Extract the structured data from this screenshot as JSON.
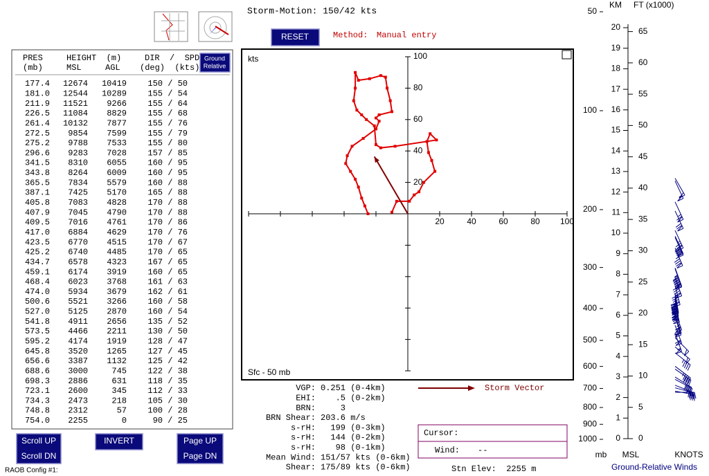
{
  "header": {
    "storm_motion": "Storm-Motion: 150/42 kts",
    "reset": "RESET",
    "method_label": "Method:",
    "method_value": "Manual entry"
  },
  "table": {
    "ground_relative": [
      "Ground",
      "Relative"
    ],
    "headers": {
      "pres": "PRES",
      "pres_unit": "(mb)",
      "height": "HEIGHT  (m)",
      "msl": "MSL",
      "agl": "AGL",
      "dir_spd": "DIR  /  SPD",
      "dir_spd_unit": "(deg)  (kts)"
    },
    "rows": [
      [
        "177.4",
        "12674",
        "10419",
        "150 / 50"
      ],
      [
        "181.0",
        "12544",
        "10289",
        "155 / 54"
      ],
      [
        "211.9",
        "11521",
        "9266",
        "155 / 64"
      ],
      [
        "226.5",
        "11084",
        "8829",
        "155 / 68"
      ],
      [
        "261.4",
        "10132",
        "7877",
        "155 / 76"
      ],
      [
        "272.5",
        "9854",
        "7599",
        "155 / 79"
      ],
      [
        "275.2",
        "9788",
        "7533",
        "155 / 80"
      ],
      [
        "296.6",
        "9283",
        "7028",
        "157 / 85"
      ],
      [
        "341.5",
        "8310",
        "6055",
        "160 / 95"
      ],
      [
        "343.8",
        "8264",
        "6009",
        "160 / 95"
      ],
      [
        "365.5",
        "7834",
        "5579",
        "160 / 88"
      ],
      [
        "387.1",
        "7425",
        "5170",
        "165 / 88"
      ],
      [
        "405.8",
        "7083",
        "4828",
        "170 / 88"
      ],
      [
        "407.9",
        "7045",
        "4790",
        "170 / 88"
      ],
      [
        "409.5",
        "7016",
        "4761",
        "170 / 86"
      ],
      [
        "417.0",
        "6884",
        "4629",
        "170 / 76"
      ],
      [
        "423.5",
        "6770",
        "4515",
        "170 / 67"
      ],
      [
        "425.2",
        "6740",
        "4485",
        "170 / 65"
      ],
      [
        "434.7",
        "6578",
        "4323",
        "167 / 65"
      ],
      [
        "459.1",
        "6174",
        "3919",
        "160 / 65"
      ],
      [
        "468.4",
        "6023",
        "3768",
        "161 / 63"
      ],
      [
        "474.0",
        "5934",
        "3679",
        "162 / 61"
      ],
      [
        "500.6",
        "5521",
        "3266",
        "160 / 58"
      ],
      [
        "527.0",
        "5125",
        "2870",
        "160 / 54"
      ],
      [
        "541.8",
        "4911",
        "2656",
        "135 / 52"
      ],
      [
        "573.5",
        "4466",
        "2211",
        "130 / 50"
      ],
      [
        "595.2",
        "4174",
        "1919",
        "128 / 47"
      ],
      [
        "645.8",
        "3520",
        "1265",
        "127 / 45"
      ],
      [
        "656.6",
        "3387",
        "1132",
        "125 / 42"
      ],
      [
        "688.6",
        "3000",
        "745",
        "122 / 38"
      ],
      [
        "698.3",
        "2886",
        "631",
        "118 / 35"
      ],
      [
        "723.1",
        "2600",
        "345",
        "112 / 33"
      ],
      [
        "734.3",
        "2473",
        "218",
        "105 / 30"
      ],
      [
        "748.8",
        "2312",
        "57",
        "100 / 28"
      ],
      [
        "754.0",
        "2255",
        "0",
        "90 / 25"
      ]
    ]
  },
  "buttons": {
    "scroll_up": "Scroll UP",
    "scroll_dn": "Scroll DN",
    "invert": "INVERT",
    "page_up": "Page UP",
    "page_dn": "Page DN"
  },
  "config": "RAOB Config #1:",
  "stats": [
    {
      "label": "VGP:",
      "value": "0.251 (0-4km)"
    },
    {
      "label": "EHI:",
      "value": "   .5 (0-2km)"
    },
    {
      "label": "BRN:",
      "value": "    3"
    },
    {
      "label": "BRN Shear:",
      "value": "203.6 m/s"
    },
    {
      "label": "s-rH:",
      "value": "  199 (0-3km)"
    },
    {
      "label": "s-rH:",
      "value": "  144 (0-2km)"
    },
    {
      "label": "s-rH:",
      "value": "   98 (0-1km)"
    },
    {
      "label": "Mean Wind:",
      "value": "151/57 kts (0-6km)"
    },
    {
      "label": "Shear:",
      "value": "175/89 kts (0-6km)"
    }
  ],
  "cursor": {
    "label": "Cursor:",
    "wind_label": "Wind:",
    "wind_value": "--"
  },
  "station": "Stn Elev:  2255 m",
  "chart_data": [
    {
      "type": "hodograph",
      "y_label": "kts",
      "layer": "Sfc - 50 mb",
      "color": "#e00000",
      "u": [
        -25,
        -27,
        -29,
        -31,
        -33,
        -36,
        -39,
        -38,
        -35,
        -28,
        -20,
        -18,
        -20,
        -18,
        -10,
        -11,
        -13,
        -14,
        -17,
        -24,
        -31,
        -33,
        -33,
        -34,
        -32,
        -29,
        -26,
        -21,
        -20,
        -17,
        -8,
        18,
        14,
        12,
        13,
        15,
        17,
        10,
        7,
        4,
        1,
        -7,
        -10
      ],
      "v": [
        0,
        5,
        10,
        17,
        22,
        27,
        32,
        37,
        43,
        48,
        54,
        59,
        61,
        63,
        65,
        72,
        80,
        87,
        88,
        86,
        85,
        90,
        80,
        72,
        66,
        63,
        60,
        56,
        44,
        42,
        43,
        47,
        51,
        46,
        39,
        34,
        27,
        20,
        14,
        12,
        8,
        8,
        1
      ],
      "xlim": [
        -100,
        100
      ],
      "ylim": [
        -100,
        100
      ],
      "xticks": [
        {
          "value": -100,
          "label": null
        },
        {
          "value": -80,
          "label": null
        },
        {
          "value": -60,
          "label": null
        },
        {
          "value": -40,
          "label": null
        },
        {
          "value": -20,
          "label": null
        },
        20,
        40,
        60,
        80,
        100
      ],
      "yticks": [
        {
          "value": -100,
          "label": null
        },
        {
          "value": -80,
          "label": null
        },
        {
          "value": -60,
          "label": null
        },
        {
          "value": -40,
          "label": null
        },
        {
          "value": -20,
          "label": null
        },
        20,
        40,
        60,
        80,
        100
      ],
      "storm_vector": {
        "u": -21,
        "v": 36.4,
        "label": "Storm Vector",
        "color": "#800000"
      }
    },
    {
      "type": "wind-profile",
      "title": "Ground-Relative Winds",
      "km_label": "KM",
      "ft_label": "FT (x1000)",
      "mb_label": "mb",
      "msl_label": "MSL",
      "knots_label": "KNOTS",
      "color": "#000080",
      "ylim": [
        0,
        20
      ],
      "yticks": [
        0,
        1,
        2,
        3,
        4,
        5,
        6,
        7,
        8,
        9,
        10,
        11,
        12,
        13,
        14,
        15,
        16,
        17,
        18,
        19,
        20
      ],
      "y2lim": [
        0,
        65.62
      ],
      "y2ticks": [
        0,
        5,
        10,
        15,
        20,
        25,
        30,
        35,
        40,
        45,
        50,
        55,
        60,
        65
      ],
      "pressure_lim": [
        1000,
        50
      ],
      "pressure_log": true,
      "pressure_ticks": [
        50,
        100,
        200,
        300,
        400,
        500,
        600,
        700,
        800,
        900,
        1000
      ],
      "km": [
        12.674,
        12.544,
        11.521,
        11.084,
        10.132,
        9.854,
        9.788,
        9.283,
        8.31,
        8.264,
        7.834,
        7.425,
        7.083,
        7.045,
        7.016,
        6.884,
        6.77,
        6.74,
        6.578,
        6.174,
        6.023,
        5.934,
        5.521,
        5.125,
        4.911,
        4.466,
        4.174,
        3.52,
        3.387,
        3.0,
        2.886,
        2.6,
        2.473,
        2.312,
        2.255
      ],
      "dir": [
        150,
        155,
        155,
        155,
        155,
        155,
        155,
        157,
        160,
        160,
        160,
        165,
        170,
        170,
        170,
        170,
        170,
        170,
        167,
        160,
        161,
        162,
        160,
        160,
        135,
        130,
        128,
        127,
        125,
        122,
        118,
        112,
        105,
        100,
        90
      ],
      "spd": [
        50,
        54,
        64,
        68,
        76,
        79,
        80,
        85,
        95,
        95,
        88,
        88,
        88,
        88,
        86,
        76,
        67,
        65,
        65,
        65,
        63,
        61,
        58,
        54,
        52,
        50,
        47,
        45,
        42,
        38,
        35,
        33,
        30,
        28,
        25
      ]
    }
  ]
}
